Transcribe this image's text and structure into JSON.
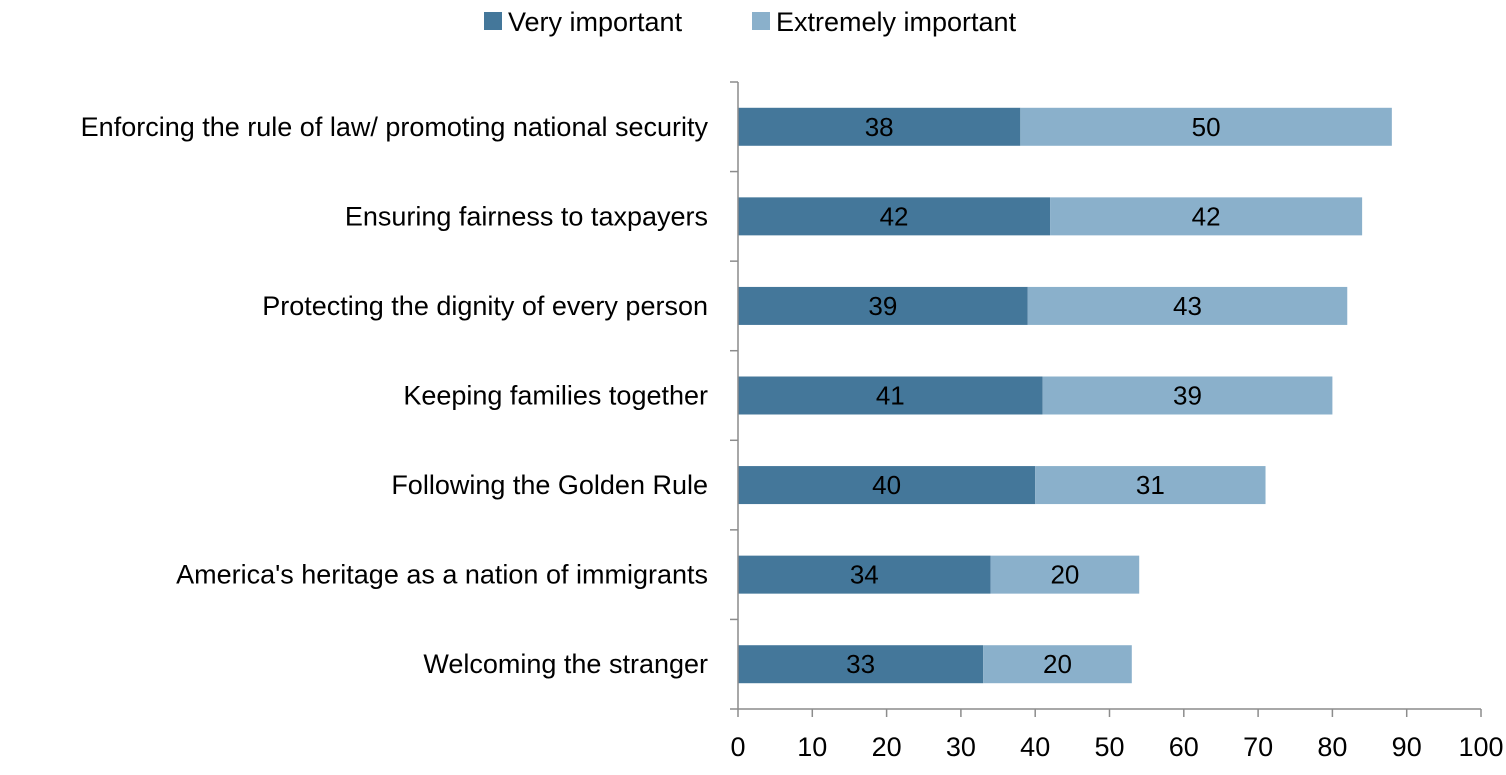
{
  "chart_data": {
    "type": "bar",
    "orientation": "horizontal",
    "stacked": true,
    "title": "",
    "xlabel": "",
    "ylabel": "",
    "xlim": [
      0,
      100
    ],
    "x_ticks": [
      0,
      10,
      20,
      30,
      40,
      50,
      60,
      70,
      80,
      90,
      100
    ],
    "grid": false,
    "legend_position": "top",
    "categories": [
      "Enforcing the rule of law/ promoting national security",
      "Ensuring fairness to taxpayers",
      "Protecting the dignity of every person",
      "Keeping families together",
      "Following the Golden Rule",
      "America's heritage as a nation of immigrants",
      "Welcoming the stranger"
    ],
    "series": [
      {
        "name": "Very important",
        "color": "#44779A",
        "values": [
          38,
          42,
          39,
          41,
          40,
          34,
          33
        ]
      },
      {
        "name": "Extremely important",
        "color": "#8AB0CB",
        "values": [
          50,
          42,
          43,
          39,
          31,
          20,
          20
        ]
      }
    ]
  }
}
